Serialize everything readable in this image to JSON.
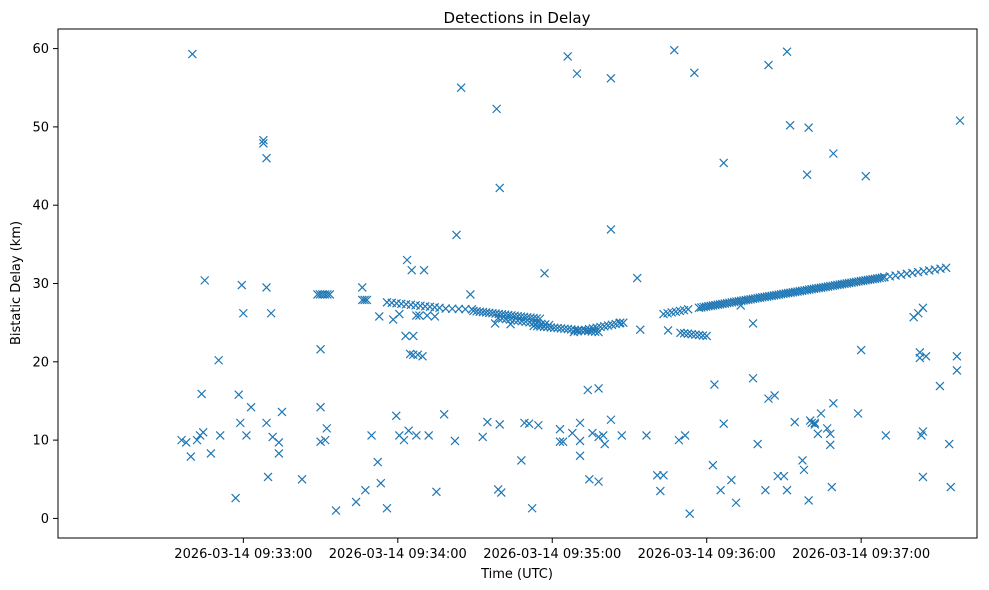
{
  "chart_data": {
    "type": "scatter",
    "title": "Detections in Delay",
    "xlabel": "Time (UTC)",
    "ylabel": "Bistatic Delay (km)",
    "marker": "x",
    "color": "#1f77b4",
    "grid": false,
    "xlim": [
      -1.2,
      4.75
    ],
    "ylim": [
      -2.5,
      62.5
    ],
    "x_unit": "minutes after 2026-03-14 09:33:00",
    "xticks": [
      {
        "value": 0,
        "label": "2026-03-14 09:33:00"
      },
      {
        "value": 1,
        "label": "2026-03-14 09:34:00"
      },
      {
        "value": 2,
        "label": "2026-03-14 09:35:00"
      },
      {
        "value": 3,
        "label": "2026-03-14 09:36:00"
      },
      {
        "value": 4,
        "label": "2026-03-14 09:37:00"
      }
    ],
    "yticks": [
      0,
      10,
      20,
      30,
      40,
      50,
      60
    ],
    "track_segments": [
      {
        "x_start": 0.48,
        "x_end": 0.56,
        "y_start": 28.6,
        "y_end": 28.6,
        "n": 6
      },
      {
        "x_start": 0.77,
        "x_end": 0.8,
        "y_start": 27.9,
        "y_end": 27.9,
        "n": 3
      },
      {
        "x_start": 0.93,
        "x_end": 1.27,
        "y_start": 27.6,
        "y_end": 26.9,
        "n": 12
      },
      {
        "x_start": 1.31,
        "x_end": 1.48,
        "y_start": 26.8,
        "y_end": 26.7,
        "n": 5
      },
      {
        "x_start": 1.49,
        "x_end": 1.92,
        "y_start": 26.5,
        "y_end": 25.5,
        "n": 22
      },
      {
        "x_start": 1.65,
        "x_end": 1.98,
        "y_start": 25.6,
        "y_end": 24.7,
        "n": 14
      },
      {
        "x_start": 1.88,
        "x_end": 2.3,
        "y_start": 24.6,
        "y_end": 23.8,
        "n": 20
      },
      {
        "x_start": 2.14,
        "x_end": 2.46,
        "y_start": 23.8,
        "y_end": 25.0,
        "n": 14
      },
      {
        "x_start": 2.72,
        "x_end": 2.88,
        "y_start": 26.1,
        "y_end": 26.7,
        "n": 7
      },
      {
        "x_start": 2.83,
        "x_end": 3.0,
        "y_start": 23.7,
        "y_end": 23.3,
        "n": 8
      },
      {
        "x_start": 2.95,
        "x_end": 4.15,
        "y_start": 26.9,
        "y_end": 30.8,
        "n": 80
      },
      {
        "x_start": 4.15,
        "x_end": 4.55,
        "y_start": 30.8,
        "y_end": 32.0,
        "n": 12
      }
    ],
    "points": [
      [
        -0.4,
        10.0
      ],
      [
        -0.37,
        9.7
      ],
      [
        -0.34,
        7.9
      ],
      [
        -0.3,
        10.0
      ],
      [
        -0.28,
        10.6
      ],
      [
        -0.26,
        11.0
      ],
      [
        -0.27,
        15.9
      ],
      [
        -0.25,
        30.4
      ],
      [
        -0.21,
        8.3
      ],
      [
        -0.15,
        10.6
      ],
      [
        -0.16,
        20.2
      ],
      [
        -0.33,
        59.3
      ],
      [
        -0.05,
        2.6
      ],
      [
        -0.03,
        15.8
      ],
      [
        -0.02,
        12.2
      ],
      [
        -0.01,
        29.8
      ],
      [
        0.0,
        26.2
      ],
      [
        0.02,
        10.6
      ],
      [
        0.05,
        14.2
      ],
      [
        0.13,
        48.3
      ],
      [
        0.13,
        47.9
      ],
      [
        0.15,
        46.0
      ],
      [
        0.15,
        29.5
      ],
      [
        0.15,
        12.2
      ],
      [
        0.16,
        5.3
      ],
      [
        0.18,
        26.2
      ],
      [
        0.19,
        10.4
      ],
      [
        0.23,
        9.7
      ],
      [
        0.23,
        8.3
      ],
      [
        0.25,
        13.6
      ],
      [
        0.38,
        5.0
      ],
      [
        0.5,
        21.6
      ],
      [
        0.5,
        14.2
      ],
      [
        0.5,
        9.8
      ],
      [
        0.53,
        10.0
      ],
      [
        0.54,
        11.5
      ],
      [
        0.6,
        1.0
      ],
      [
        0.73,
        2.1
      ],
      [
        0.79,
        3.6
      ],
      [
        0.77,
        29.5
      ],
      [
        0.83,
        10.6
      ],
      [
        0.87,
        7.2
      ],
      [
        0.89,
        4.5
      ],
      [
        0.88,
        25.8
      ],
      [
        0.93,
        1.3
      ],
      [
        0.97,
        25.4
      ],
      [
        0.99,
        13.1
      ],
      [
        1.01,
        10.6
      ],
      [
        1.01,
        26.1
      ],
      [
        1.04,
        10.0
      ],
      [
        1.05,
        23.3
      ],
      [
        1.06,
        33.0
      ],
      [
        1.07,
        11.2
      ],
      [
        1.08,
        21.0
      ],
      [
        1.09,
        31.7
      ],
      [
        1.1,
        20.9
      ],
      [
        1.1,
        23.3
      ],
      [
        1.13,
        20.9
      ],
      [
        1.14,
        25.9
      ],
      [
        1.12,
        25.9
      ],
      [
        1.12,
        10.6
      ],
      [
        1.16,
        20.7
      ],
      [
        1.17,
        31.7
      ],
      [
        1.19,
        25.9
      ],
      [
        1.2,
        10.6
      ],
      [
        1.24,
        25.8
      ],
      [
        1.25,
        3.4
      ],
      [
        1.3,
        13.3
      ],
      [
        1.37,
        9.9
      ],
      [
        1.38,
        36.2
      ],
      [
        1.41,
        55.0
      ],
      [
        1.47,
        28.6
      ],
      [
        1.55,
        10.4
      ],
      [
        1.58,
        12.3
      ],
      [
        1.64,
        52.3
      ],
      [
        1.63,
        24.9
      ],
      [
        1.65,
        3.7
      ],
      [
        1.66,
        42.2
      ],
      [
        1.66,
        12.0
      ],
      [
        1.67,
        3.3
      ],
      [
        1.73,
        24.8
      ],
      [
        1.8,
        7.4
      ],
      [
        1.82,
        12.2
      ],
      [
        1.85,
        12.1
      ],
      [
        1.87,
        1.3
      ],
      [
        1.91,
        11.9
      ],
      [
        1.95,
        31.3
      ],
      [
        2.05,
        11.4
      ],
      [
        2.05,
        9.8
      ],
      [
        2.07,
        9.8
      ],
      [
        2.1,
        59.0
      ],
      [
        2.16,
        56.8
      ],
      [
        2.13,
        10.9
      ],
      [
        2.18,
        12.2
      ],
      [
        2.18,
        9.9
      ],
      [
        2.18,
        8.0
      ],
      [
        2.23,
        16.4
      ],
      [
        2.24,
        5.0
      ],
      [
        2.26,
        10.9
      ],
      [
        2.3,
        10.4
      ],
      [
        2.3,
        16.6
      ],
      [
        2.3,
        4.7
      ],
      [
        2.33,
        10.6
      ],
      [
        2.34,
        9.5
      ],
      [
        2.38,
        12.6
      ],
      [
        2.38,
        36.9
      ],
      [
        2.38,
        56.2
      ],
      [
        2.45,
        10.6
      ],
      [
        2.44,
        25.0
      ],
      [
        2.55,
        30.7
      ],
      [
        2.57,
        24.1
      ],
      [
        2.61,
        10.6
      ],
      [
        2.68,
        5.5
      ],
      [
        2.7,
        3.5
      ],
      [
        2.72,
        5.5
      ],
      [
        2.75,
        24.0
      ],
      [
        2.79,
        59.8
      ],
      [
        2.82,
        10.0
      ],
      [
        2.86,
        10.6
      ],
      [
        2.89,
        0.6
      ],
      [
        2.92,
        56.9
      ],
      [
        3.04,
        6.8
      ],
      [
        3.05,
        17.1
      ],
      [
        3.09,
        3.6
      ],
      [
        3.11,
        45.4
      ],
      [
        3.11,
        12.1
      ],
      [
        3.16,
        4.9
      ],
      [
        3.19,
        2.0
      ],
      [
        3.22,
        27.2
      ],
      [
        3.3,
        17.9
      ],
      [
        3.3,
        24.9
      ],
      [
        3.33,
        9.5
      ],
      [
        3.38,
        3.6
      ],
      [
        3.4,
        15.3
      ],
      [
        3.4,
        57.9
      ],
      [
        3.44,
        15.7
      ],
      [
        3.46,
        5.4
      ],
      [
        3.5,
        5.4
      ],
      [
        3.52,
        3.6
      ],
      [
        3.52,
        59.6
      ],
      [
        3.54,
        50.2
      ],
      [
        3.57,
        12.3
      ],
      [
        3.62,
        7.4
      ],
      [
        3.63,
        6.2
      ],
      [
        3.65,
        43.9
      ],
      [
        3.66,
        49.9
      ],
      [
        3.66,
        2.3
      ],
      [
        3.67,
        12.5
      ],
      [
        3.68,
        12.2
      ],
      [
        3.7,
        12.2
      ],
      [
        3.7,
        12.0
      ],
      [
        3.72,
        10.8
      ],
      [
        3.74,
        13.4
      ],
      [
        3.78,
        11.5
      ],
      [
        3.8,
        9.4
      ],
      [
        3.8,
        10.8
      ],
      [
        3.82,
        14.7
      ],
      [
        3.81,
        4.0
      ],
      [
        3.82,
        46.6
      ],
      [
        3.98,
        13.4
      ],
      [
        4.0,
        21.5
      ],
      [
        4.03,
        43.7
      ],
      [
        4.16,
        10.6
      ],
      [
        4.34,
        25.7
      ],
      [
        4.37,
        26.2
      ],
      [
        4.38,
        21.2
      ],
      [
        4.38,
        20.5
      ],
      [
        4.39,
        10.6
      ],
      [
        4.4,
        26.9
      ],
      [
        4.4,
        5.3
      ],
      [
        4.4,
        11.1
      ],
      [
        4.42,
        20.7
      ],
      [
        4.51,
        16.9
      ],
      [
        4.57,
        9.5
      ],
      [
        4.58,
        4.0
      ],
      [
        4.62,
        20.7
      ],
      [
        4.62,
        18.9
      ],
      [
        4.64,
        50.8
      ]
    ]
  }
}
